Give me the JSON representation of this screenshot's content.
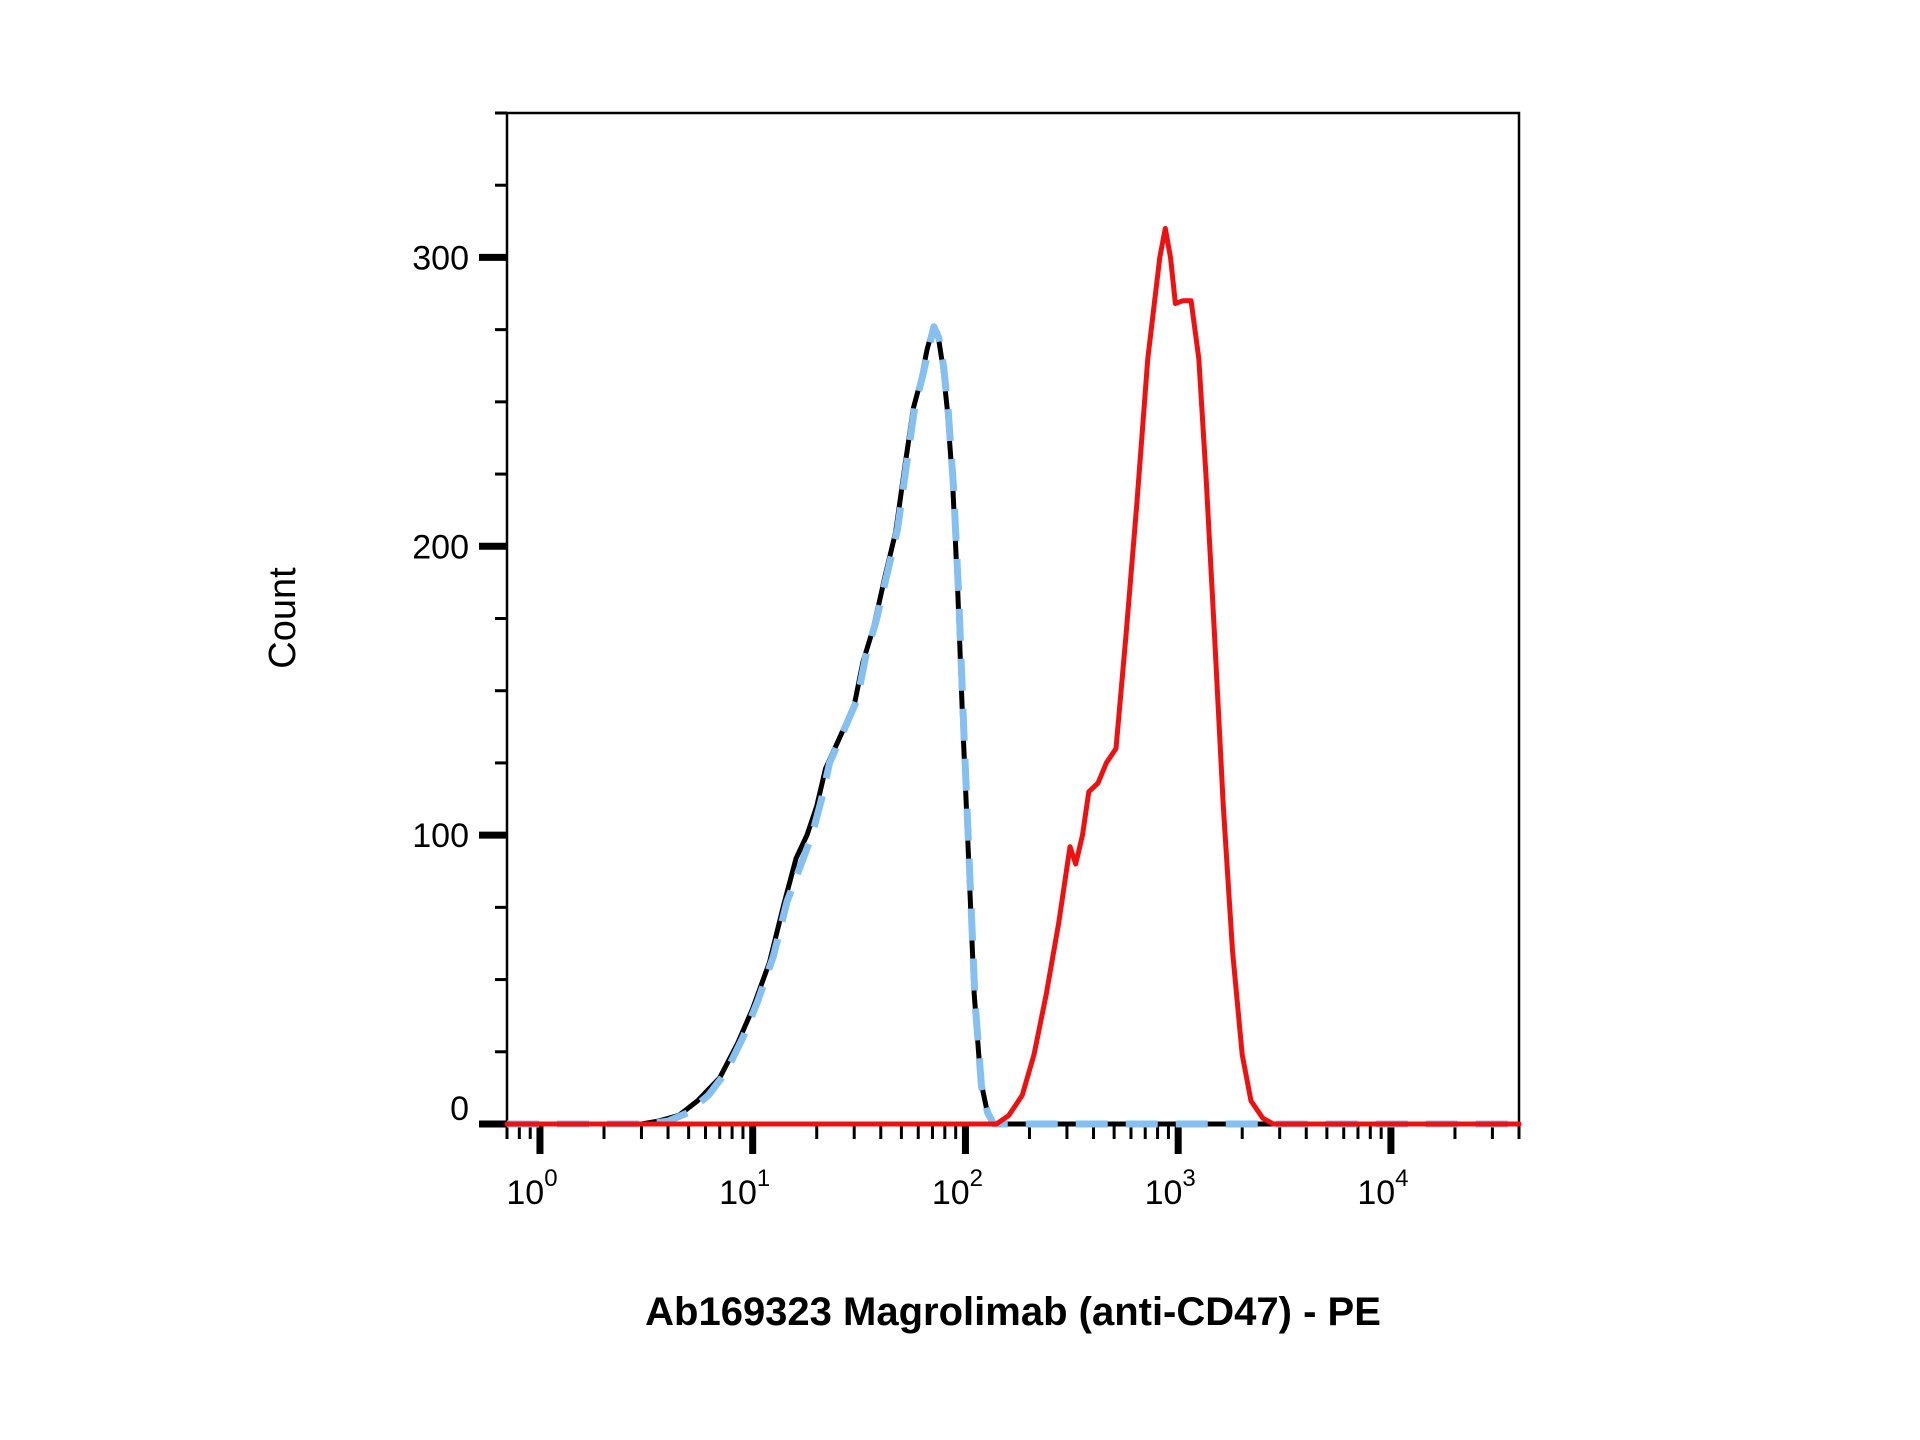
{
  "chart_data": {
    "type": "line",
    "title": "",
    "xlabel": "Ab169323 Magrolimab (anti-CD47) - PE",
    "ylabel": "Count",
    "x_scale": "log",
    "xlim": [
      0.7,
      40000
    ],
    "ylim": [
      0,
      350
    ],
    "y_ticks": [
      0,
      100,
      200,
      300
    ],
    "x_ticks": [
      {
        "base": "10",
        "exp": "0",
        "value": 1
      },
      {
        "base": "10",
        "exp": "1",
        "value": 10
      },
      {
        "base": "10",
        "exp": "2",
        "value": 100
      },
      {
        "base": "10",
        "exp": "3",
        "value": 1000
      },
      {
        "base": "10",
        "exp": "4",
        "value": 10000
      }
    ],
    "grid": false,
    "legend": "none",
    "series": [
      {
        "color": "#000000",
        "style": "solid",
        "points": [
          [
            0.7,
            0
          ],
          [
            3,
            0
          ],
          [
            3.6,
            1
          ],
          [
            4.5,
            3
          ],
          [
            5.5,
            8
          ],
          [
            7,
            16
          ],
          [
            8.5,
            28
          ],
          [
            10,
            40
          ],
          [
            12,
            56
          ],
          [
            14,
            76
          ],
          [
            16,
            92
          ],
          [
            18,
            100
          ],
          [
            20,
            110
          ],
          [
            22,
            123
          ],
          [
            25,
            132
          ],
          [
            30,
            145
          ],
          [
            33,
            160
          ],
          [
            37,
            172
          ],
          [
            42,
            190
          ],
          [
            47,
            205
          ],
          [
            52,
            228
          ],
          [
            57,
            248
          ],
          [
            62,
            258
          ],
          [
            66,
            268
          ],
          [
            70,
            275
          ],
          [
            74,
            274
          ],
          [
            78,
            263
          ],
          [
            82,
            248
          ],
          [
            87,
            222
          ],
          [
            92,
            185
          ],
          [
            97,
            140
          ],
          [
            103,
            95
          ],
          [
            110,
            45
          ],
          [
            118,
            15
          ],
          [
            126,
            5
          ],
          [
            135,
            0
          ],
          [
            40000,
            0
          ]
        ]
      },
      {
        "color": "#86C0F0",
        "style": "dashed",
        "points": [
          [
            0.7,
            0
          ],
          [
            3.2,
            0
          ],
          [
            4,
            1
          ],
          [
            5,
            4
          ],
          [
            6.2,
            10
          ],
          [
            7.5,
            18
          ],
          [
            9,
            30
          ],
          [
            10.5,
            42
          ],
          [
            12.5,
            58
          ],
          [
            14.5,
            77
          ],
          [
            16.5,
            88
          ],
          [
            19,
            100
          ],
          [
            21,
            112
          ],
          [
            23,
            125
          ],
          [
            26,
            134
          ],
          [
            31,
            147
          ],
          [
            34,
            162
          ],
          [
            38,
            174
          ],
          [
            43,
            191
          ],
          [
            48,
            206
          ],
          [
            53,
            229
          ],
          [
            58,
            249
          ],
          [
            63,
            259
          ],
          [
            67,
            268
          ],
          [
            71,
            276
          ],
          [
            75,
            272
          ],
          [
            79,
            262
          ],
          [
            83,
            247
          ],
          [
            88,
            220
          ],
          [
            93,
            183
          ],
          [
            98,
            138
          ],
          [
            104,
            92
          ],
          [
            111,
            42
          ],
          [
            119,
            13
          ],
          [
            127,
            4
          ],
          [
            136,
            0
          ],
          [
            40000,
            0
          ]
        ]
      },
      {
        "color": "#EE1111",
        "style": "solid",
        "points": [
          [
            0.7,
            0
          ],
          [
            140,
            0
          ],
          [
            160,
            3
          ],
          [
            185,
            10
          ],
          [
            210,
            24
          ],
          [
            240,
            45
          ],
          [
            275,
            70
          ],
          [
            310,
            96
          ],
          [
            330,
            90
          ],
          [
            355,
            100
          ],
          [
            380,
            115
          ],
          [
            420,
            118
          ],
          [
            460,
            125
          ],
          [
            510,
            130
          ],
          [
            570,
            170
          ],
          [
            640,
            215
          ],
          [
            720,
            265
          ],
          [
            820,
            300
          ],
          [
            870,
            310
          ],
          [
            920,
            300
          ],
          [
            970,
            284
          ],
          [
            1050,
            285
          ],
          [
            1150,
            285
          ],
          [
            1250,
            265
          ],
          [
            1350,
            225
          ],
          [
            1480,
            170
          ],
          [
            1630,
            110
          ],
          [
            1800,
            60
          ],
          [
            2000,
            24
          ],
          [
            2200,
            8
          ],
          [
            2500,
            2
          ],
          [
            2800,
            0
          ],
          [
            40000,
            0
          ]
        ]
      }
    ]
  }
}
